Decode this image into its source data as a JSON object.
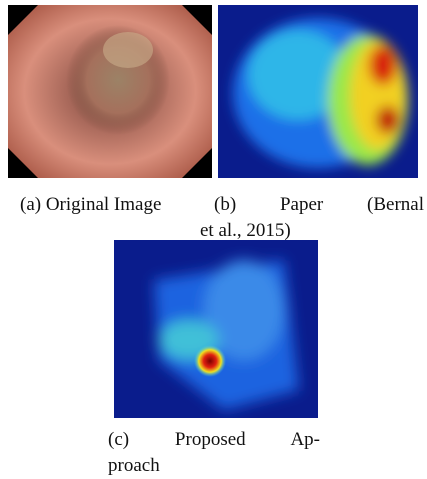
{
  "figures": [
    {
      "caption_lines": [
        "(a) Original Image"
      ]
    },
    {
      "caption_lines": [
        "(b) Paper (Bernal",
        "et al., 2015)"
      ]
    },
    {
      "caption_lines": [
        "(c) Proposed Ap-",
        "proach"
      ]
    }
  ]
}
